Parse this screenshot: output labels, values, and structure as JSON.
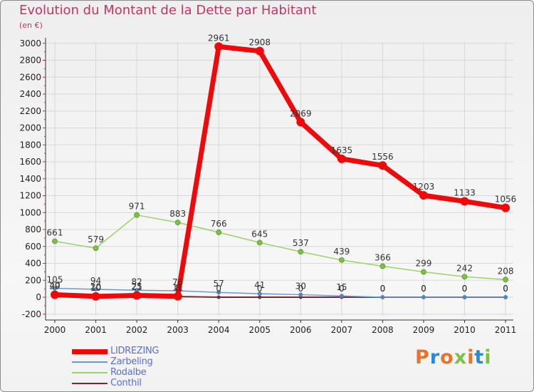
{
  "title": "Evolution du Montant de la Dette par Habitant",
  "subtitle": "(en €)",
  "logo": {
    "text": "Proxiti",
    "colors": [
      "#e8742c",
      "#2a8ad4",
      "#e8742c",
      "#7cc142",
      "#e8742c",
      "#2a8ad4",
      "#7cc142"
    ]
  },
  "chart_data": {
    "type": "line",
    "categories": [
      "2000",
      "2001",
      "2002",
      "2003",
      "2004",
      "2005",
      "2006",
      "2007",
      "2008",
      "2009",
      "2010",
      "2011"
    ],
    "ylim": [
      -200,
      3000
    ],
    "yticks": [
      -200,
      0,
      200,
      400,
      600,
      800,
      1000,
      1200,
      1400,
      1600,
      1800,
      2000,
      2200,
      2400,
      2600,
      2800,
      3000
    ],
    "series": [
      {
        "name": "Conthil",
        "color": "#7a2838",
        "width": 2,
        "marker": 2.5,
        "values": [
          40,
          20,
          25,
          8,
          0,
          0,
          0,
          0,
          0,
          0,
          0,
          0
        ],
        "labels": [
          "40",
          "20",
          "25",
          "8",
          "0",
          "0",
          "0",
          "0",
          "0",
          "0",
          "0",
          "0"
        ]
      },
      {
        "name": "Zarbeling",
        "color": "#6a9ad0",
        "width": 1.5,
        "marker": 3,
        "values": [
          105,
          94,
          82,
          76,
          57,
          41,
          30,
          15,
          0,
          0,
          0,
          0
        ],
        "labels": [
          "105",
          "94",
          "82",
          "76",
          "57",
          "41",
          "30",
          "15",
          "0",
          "0",
          "0",
          "0"
        ]
      },
      {
        "name": "Rodalbe",
        "color": "#9ad36a",
        "width": 1.5,
        "marker": 3.5,
        "values": [
          661,
          579,
          971,
          883,
          766,
          645,
          537,
          439,
          366,
          299,
          242,
          208
        ],
        "labels": [
          "661",
          "579",
          "971",
          "883",
          "766",
          "645",
          "537",
          "439",
          "366",
          "299",
          "242",
          "208"
        ]
      },
      {
        "name": "LIDREZING",
        "color": "#ee0a0a",
        "width": 7,
        "marker": 6,
        "values": [
          29,
          10,
          21,
          11,
          2961,
          2908,
          2069,
          1635,
          1556,
          1203,
          1133,
          1056
        ],
        "labels": [
          "29",
          "10",
          "21",
          "11",
          "2961",
          "2908",
          "2069",
          "1635",
          "1556",
          "1203",
          "1133",
          "1056"
        ]
      }
    ]
  },
  "legend": [
    {
      "label": "LIDREZING",
      "color": "#ee0a0a",
      "thickness": 7
    },
    {
      "label": "Zarbeling",
      "color": "#6a9ad0",
      "thickness": 2
    },
    {
      "label": "Rodalbe",
      "color": "#9ad36a",
      "thickness": 2
    },
    {
      "label": "Conthil",
      "color": "#7a2838",
      "thickness": 2
    }
  ]
}
